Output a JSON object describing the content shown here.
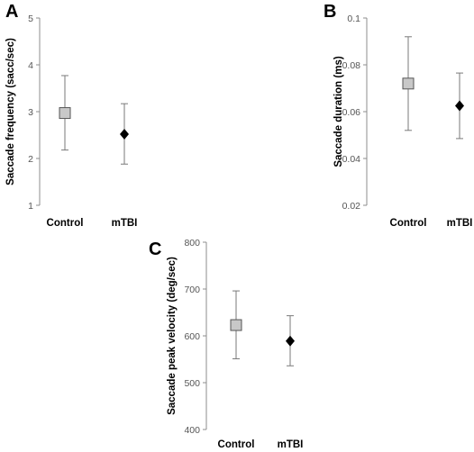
{
  "chart_data": [
    {
      "panel": "A",
      "type": "scatter",
      "ylabel": "Saccade frequency (sacc/sec)",
      "categories": [
        "Control",
        "mTBI"
      ],
      "ylim": [
        1,
        5
      ],
      "yticks": [
        "1",
        "2",
        "3",
        "4",
        "5"
      ],
      "points": [
        {
          "category": "Control",
          "mean": 2.97,
          "lower": 2.18,
          "upper": 3.77,
          "marker": "square",
          "color": "#c8c8c8"
        },
        {
          "category": "mTBI",
          "mean": 2.52,
          "lower": 1.88,
          "upper": 3.17,
          "marker": "diamond",
          "color": "#000000"
        }
      ]
    },
    {
      "panel": "B",
      "type": "scatter",
      "ylabel": "Saccade duration (ms)",
      "categories": [
        "Control",
        "mTBI"
      ],
      "ylim": [
        0.02,
        0.1
      ],
      "yticks": [
        "0.02",
        "0.04",
        "0.06",
        "0.08",
        "0.1"
      ],
      "points": [
        {
          "category": "Control",
          "mean": 0.072,
          "lower": 0.052,
          "upper": 0.092,
          "marker": "square",
          "color": "#c8c8c8"
        },
        {
          "category": "mTBI",
          "mean": 0.0625,
          "lower": 0.0485,
          "upper": 0.0765,
          "marker": "diamond",
          "color": "#000000"
        }
      ]
    },
    {
      "panel": "C",
      "type": "scatter",
      "ylabel": "Saccade peak velocity (deg/sec)",
      "categories": [
        "Control",
        "mTBI"
      ],
      "ylim": [
        400,
        800
      ],
      "yticks": [
        "400",
        "500",
        "600",
        "700",
        "800"
      ],
      "points": [
        {
          "category": "Control",
          "mean": 623,
          "lower": 551,
          "upper": 696,
          "marker": "square",
          "color": "#c8c8c8"
        },
        {
          "category": "mTBI",
          "mean": 589,
          "lower": 536,
          "upper": 643,
          "marker": "diamond",
          "color": "#000000"
        }
      ]
    }
  ]
}
